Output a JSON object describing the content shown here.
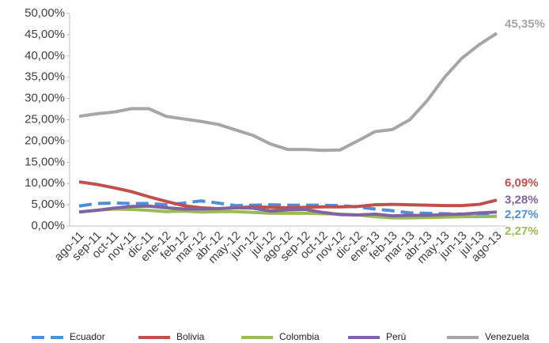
{
  "chart_data": {
    "type": "line",
    "categories": [
      "ago-11",
      "sep-11",
      "oct-11",
      "nov-11",
      "dic-11",
      "ene-12",
      "feb-12",
      "mar-12",
      "abr-12",
      "may-12",
      "jun-12",
      "jul-12",
      "ago-12",
      "sep-12",
      "oct-12",
      "nov-12",
      "dic-12",
      "ene-13",
      "feb-13",
      "mar-13",
      "abr-13",
      "may-13",
      "jun-13",
      "jul-13",
      "ago-13"
    ],
    "series": [
      {
        "name": "Ecuador",
        "color": "#4f8fd6",
        "dashed": true,
        "values": [
          4.7,
          5.3,
          5.4,
          5.3,
          5.3,
          5.0,
          5.4,
          5.9,
          5.4,
          4.8,
          4.9,
          5.0,
          4.9,
          4.9,
          4.9,
          4.8,
          4.5,
          4.0,
          3.6,
          3.1,
          3.0,
          2.9,
          2.8,
          2.6,
          2.27
        ],
        "value_labels": [
          null,
          null,
          null,
          null,
          null,
          null,
          null,
          null,
          null,
          null,
          null,
          null,
          null,
          null,
          null,
          null,
          null,
          null,
          null,
          null,
          null,
          null,
          null,
          null,
          "2,27%"
        ]
      },
      {
        "name": "Bolivia",
        "color": "#c0504d",
        "values": [
          10.4,
          9.8,
          9.0,
          8.1,
          6.9,
          5.8,
          4.8,
          4.3,
          4.1,
          4.3,
          4.5,
          4.4,
          4.3,
          4.4,
          4.5,
          4.5,
          4.6,
          5.0,
          5.1,
          5.0,
          4.9,
          4.8,
          4.8,
          5.1,
          6.09
        ],
        "value_labels": [
          null,
          null,
          null,
          null,
          null,
          null,
          null,
          null,
          null,
          null,
          null,
          null,
          null,
          null,
          null,
          null,
          null,
          null,
          null,
          null,
          null,
          null,
          null,
          null,
          "6,09%"
        ]
      },
      {
        "name": "Colombia",
        "color": "#9bbb59",
        "values": [
          3.3,
          3.7,
          4.0,
          3.9,
          3.7,
          3.4,
          3.5,
          3.3,
          3.4,
          3.4,
          3.2,
          3.0,
          3.0,
          3.0,
          2.9,
          2.8,
          2.6,
          2.2,
          1.9,
          1.9,
          2.0,
          2.1,
          2.2,
          2.2,
          2.27
        ],
        "value_labels": [
          null,
          null,
          null,
          null,
          null,
          null,
          null,
          null,
          null,
          null,
          null,
          null,
          null,
          null,
          null,
          null,
          null,
          null,
          null,
          null,
          null,
          null,
          null,
          null,
          "2,27%"
        ]
      },
      {
        "name": "Perú",
        "color": "#8064a2",
        "values": [
          3.3,
          3.7,
          4.2,
          4.6,
          4.7,
          4.3,
          4.0,
          4.0,
          4.1,
          4.3,
          4.2,
          3.5,
          3.8,
          3.9,
          3.2,
          2.7,
          2.6,
          2.8,
          2.4,
          2.5,
          2.5,
          2.7,
          2.8,
          3.1,
          3.28
        ],
        "value_labels": [
          null,
          null,
          null,
          null,
          null,
          null,
          null,
          null,
          null,
          null,
          null,
          null,
          null,
          null,
          null,
          null,
          null,
          null,
          null,
          null,
          null,
          null,
          null,
          null,
          "3,28%"
        ]
      },
      {
        "name": "Venezuela",
        "color": "#a6a6a6",
        "values": [
          25.8,
          26.4,
          26.8,
          27.6,
          27.6,
          25.8,
          25.2,
          24.6,
          23.9,
          22.6,
          21.3,
          19.3,
          18.0,
          18.0,
          17.8,
          17.9,
          20.0,
          22.2,
          22.7,
          25.0,
          29.5,
          35.0,
          39.5,
          42.7,
          45.35
        ],
        "value_labels": [
          null,
          null,
          null,
          null,
          null,
          null,
          null,
          null,
          null,
          null,
          null,
          null,
          null,
          null,
          null,
          null,
          null,
          null,
          null,
          null,
          null,
          null,
          null,
          null,
          "45,35%"
        ]
      }
    ],
    "ylim": [
      0,
      50
    ],
    "yticks": [
      {
        "value": 0,
        "label": "0,00%"
      },
      {
        "value": 5,
        "label": "5,00%"
      },
      {
        "value": 10,
        "label": "10,00%"
      },
      {
        "value": 15,
        "label": "15,00%"
      },
      {
        "value": 20,
        "label": "20,00%"
      },
      {
        "value": 25,
        "label": "25,00%"
      },
      {
        "value": 30,
        "label": "30,00%"
      },
      {
        "value": 35,
        "label": "35,00%"
      },
      {
        "value": 40,
        "label": "40,00%"
      },
      {
        "value": 45,
        "label": "45,00%"
      },
      {
        "value": 50,
        "label": "50,00%"
      }
    ],
    "grid": false,
    "legend": "bottom"
  }
}
